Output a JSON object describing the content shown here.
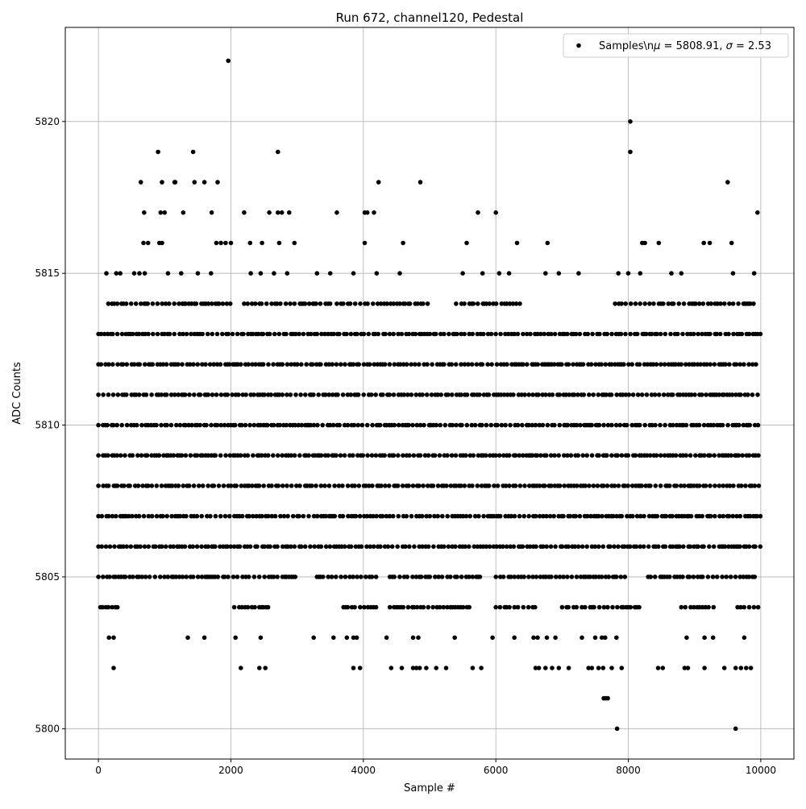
{
  "chart_data": {
    "type": "scatter",
    "title": "Run 672, channel120, Pedestal",
    "xlabel": "Sample #",
    "ylabel": "ADC Counts",
    "xlim": [
      -500,
      10500
    ],
    "ylim": [
      5799,
      5823.1
    ],
    "xticks": [
      0,
      2000,
      4000,
      6000,
      8000,
      10000
    ],
    "yticks": [
      5800,
      5805,
      5810,
      5815,
      5820
    ],
    "grid": true,
    "legend_position": "top-right",
    "marker_color": "#000000",
    "series": [
      {
        "name": "Samples\\nμ = 5808.91, σ = 2.53",
        "legend_parts": [
          "Samples\\n",
          "μ",
          " = 5808.91, ",
          "σ",
          " = 2.53"
        ],
        "levels": [
          {
            "y": 5813,
            "x_ranges": [
              [
                0,
                10000
              ]
            ]
          },
          {
            "y": 5812,
            "x_ranges": [
              [
                0,
                10000
              ]
            ]
          },
          {
            "y": 5811,
            "x_ranges": [
              [
                0,
                10000
              ]
            ]
          },
          {
            "y": 5810,
            "x_ranges": [
              [
                0,
                10000
              ]
            ]
          },
          {
            "y": 5809,
            "x_ranges": [
              [
                0,
                10000
              ]
            ]
          },
          {
            "y": 5808,
            "x_ranges": [
              [
                0,
                10000
              ]
            ]
          },
          {
            "y": 5807,
            "x_ranges": [
              [
                0,
                10000
              ]
            ]
          },
          {
            "y": 5806,
            "x_ranges": [
              [
                0,
                10000
              ]
            ]
          },
          {
            "y": 5814,
            "x_ranges": [
              [
                150,
                2000
              ],
              [
                2200,
                3500
              ],
              [
                3600,
                5000
              ],
              [
                5400,
                6400
              ],
              [
                7800,
                9900
              ]
            ]
          },
          {
            "y": 5805,
            "x_ranges": [
              [
                0,
                3000
              ],
              [
                3300,
                4200
              ],
              [
                4400,
                5800
              ],
              [
                6000,
                8000
              ],
              [
                8300,
                9950
              ]
            ]
          },
          {
            "y": 5804,
            "x_ranges": [
              [
                30,
                300
              ],
              [
                2050,
                2600
              ],
              [
                3700,
                4200
              ],
              [
                4400,
                5600
              ],
              [
                6000,
                6600
              ],
              [
                7000,
                8200
              ],
              [
                8800,
                9300
              ],
              [
                9650,
                10000
              ]
            ]
          }
        ],
        "points": [
          [
            1960,
            5822
          ],
          [
            8030,
            5820
          ],
          [
            900,
            5819
          ],
          [
            1430,
            5819
          ],
          [
            2710,
            5819
          ],
          [
            8030,
            5819
          ],
          [
            640,
            5818
          ],
          [
            960,
            5818
          ],
          [
            1150,
            5818
          ],
          [
            1160,
            5818
          ],
          [
            1450,
            5818
          ],
          [
            1600,
            5818
          ],
          [
            1800,
            5818
          ],
          [
            4230,
            5818
          ],
          [
            4860,
            5818
          ],
          [
            9500,
            5818
          ],
          [
            690,
            5817
          ],
          [
            940,
            5817
          ],
          [
            1000,
            5817
          ],
          [
            1280,
            5817
          ],
          [
            1710,
            5817
          ],
          [
            2200,
            5817
          ],
          [
            2580,
            5817
          ],
          [
            2710,
            5817
          ],
          [
            2770,
            5817
          ],
          [
            2880,
            5817
          ],
          [
            3600,
            5817
          ],
          [
            4020,
            5817
          ],
          [
            4060,
            5817
          ],
          [
            4160,
            5817
          ],
          [
            5730,
            5817
          ],
          [
            6000,
            5817
          ],
          [
            9950,
            5817
          ],
          [
            680,
            5816
          ],
          [
            750,
            5816
          ],
          [
            920,
            5816
          ],
          [
            960,
            5816
          ],
          [
            1780,
            5816
          ],
          [
            1850,
            5816
          ],
          [
            1920,
            5816
          ],
          [
            2000,
            5816
          ],
          [
            2290,
            5816
          ],
          [
            2470,
            5816
          ],
          [
            2730,
            5816
          ],
          [
            2960,
            5816
          ],
          [
            4020,
            5816
          ],
          [
            4600,
            5816
          ],
          [
            5560,
            5816
          ],
          [
            6320,
            5816
          ],
          [
            6780,
            5816
          ],
          [
            8210,
            5816
          ],
          [
            8250,
            5816
          ],
          [
            8460,
            5816
          ],
          [
            9140,
            5816
          ],
          [
            9230,
            5816
          ],
          [
            9560,
            5816
          ],
          [
            120,
            5815
          ],
          [
            270,
            5815
          ],
          [
            330,
            5815
          ],
          [
            540,
            5815
          ],
          [
            620,
            5815
          ],
          [
            700,
            5815
          ],
          [
            1050,
            5815
          ],
          [
            1250,
            5815
          ],
          [
            1500,
            5815
          ],
          [
            1700,
            5815
          ],
          [
            2300,
            5815
          ],
          [
            2450,
            5815
          ],
          [
            2650,
            5815
          ],
          [
            2850,
            5815
          ],
          [
            3300,
            5815
          ],
          [
            3500,
            5815
          ],
          [
            3850,
            5815
          ],
          [
            4200,
            5815
          ],
          [
            4550,
            5815
          ],
          [
            5500,
            5815
          ],
          [
            5800,
            5815
          ],
          [
            6050,
            5815
          ],
          [
            6200,
            5815
          ],
          [
            6750,
            5815
          ],
          [
            6950,
            5815
          ],
          [
            7250,
            5815
          ],
          [
            7850,
            5815
          ],
          [
            8000,
            5815
          ],
          [
            8180,
            5815
          ],
          [
            8650,
            5815
          ],
          [
            8800,
            5815
          ],
          [
            9580,
            5815
          ],
          [
            9900,
            5815
          ],
          [
            160,
            5803
          ],
          [
            230,
            5803
          ],
          [
            1350,
            5803
          ],
          [
            1600,
            5803
          ],
          [
            2070,
            5803
          ],
          [
            2450,
            5803
          ],
          [
            3250,
            5803
          ],
          [
            3550,
            5803
          ],
          [
            3750,
            5803
          ],
          [
            3850,
            5803
          ],
          [
            3900,
            5803
          ],
          [
            4350,
            5803
          ],
          [
            4750,
            5803
          ],
          [
            4830,
            5803
          ],
          [
            5380,
            5803
          ],
          [
            5950,
            5803
          ],
          [
            6280,
            5803
          ],
          [
            6570,
            5803
          ],
          [
            6630,
            5803
          ],
          [
            6770,
            5803
          ],
          [
            6900,
            5803
          ],
          [
            7300,
            5803
          ],
          [
            7500,
            5803
          ],
          [
            7600,
            5803
          ],
          [
            7650,
            5803
          ],
          [
            7820,
            5803
          ],
          [
            8880,
            5803
          ],
          [
            9150,
            5803
          ],
          [
            9280,
            5803
          ],
          [
            9750,
            5803
          ],
          [
            230,
            5802
          ],
          [
            2150,
            5802
          ],
          [
            2430,
            5802
          ],
          [
            2520,
            5802
          ],
          [
            3850,
            5802
          ],
          [
            3950,
            5802
          ],
          [
            4420,
            5802
          ],
          [
            4580,
            5802
          ],
          [
            4750,
            5802
          ],
          [
            4800,
            5802
          ],
          [
            4850,
            5802
          ],
          [
            4950,
            5802
          ],
          [
            5100,
            5802
          ],
          [
            5250,
            5802
          ],
          [
            5650,
            5802
          ],
          [
            5780,
            5802
          ],
          [
            6600,
            5802
          ],
          [
            6650,
            5802
          ],
          [
            6750,
            5802
          ],
          [
            6850,
            5802
          ],
          [
            6950,
            5802
          ],
          [
            7100,
            5802
          ],
          [
            7400,
            5802
          ],
          [
            7450,
            5802
          ],
          [
            7550,
            5802
          ],
          [
            7620,
            5802
          ],
          [
            7750,
            5802
          ],
          [
            7900,
            5802
          ],
          [
            8450,
            5802
          ],
          [
            8520,
            5802
          ],
          [
            8850,
            5802
          ],
          [
            8900,
            5802
          ],
          [
            9150,
            5802
          ],
          [
            9450,
            5802
          ],
          [
            9620,
            5802
          ],
          [
            9700,
            5802
          ],
          [
            9780,
            5802
          ],
          [
            9850,
            5802
          ],
          [
            7630,
            5801
          ],
          [
            7660,
            5801
          ],
          [
            7690,
            5801
          ],
          [
            7830,
            5800
          ],
          [
            9620,
            5800
          ]
        ]
      }
    ]
  }
}
